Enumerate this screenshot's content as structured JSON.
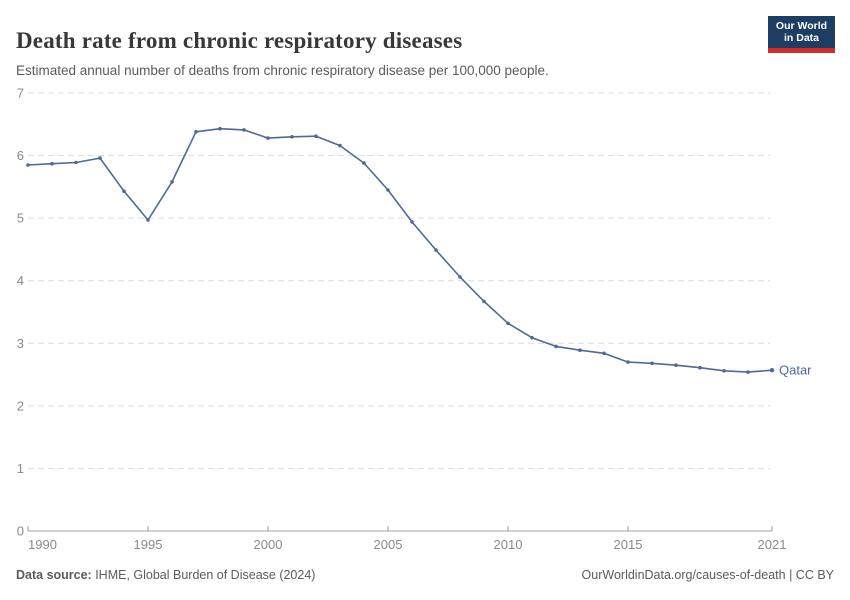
{
  "header": {
    "title": "Death rate from chronic respiratory diseases",
    "subtitle": "Estimated annual number of deaths from chronic respiratory disease per 100,000 people.",
    "logo": {
      "line1": "Our World",
      "line2": "in Data",
      "bg_color": "#1d3d63",
      "accent_color": "#d42b2b"
    }
  },
  "chart_data": {
    "type": "line",
    "title": "Death rate from chronic respiratory diseases",
    "xlabel": "",
    "ylabel": "",
    "ylim": [
      0,
      7
    ],
    "xlim": [
      1990,
      2021
    ],
    "yticks": [
      0,
      1,
      2,
      3,
      4,
      5,
      6,
      7
    ],
    "xticks": [
      1990,
      1995,
      2000,
      2005,
      2010,
      2015,
      2021
    ],
    "grid": "horizontal-dashed",
    "legend_position": "end-of-line-label",
    "line_color": "#4c6a9c",
    "axis_color": "#a3a3a3",
    "grid_color": "#dcdcdc",
    "tick_label_color": "#8a8a8a",
    "series": [
      {
        "name": "Qatar",
        "color": "#4c6a9c",
        "x": [
          1990,
          1991,
          1992,
          1993,
          1994,
          1995,
          1996,
          1997,
          1998,
          1999,
          2000,
          2001,
          2002,
          2003,
          2004,
          2005,
          2006,
          2007,
          2008,
          2009,
          2010,
          2011,
          2012,
          2013,
          2014,
          2015,
          2016,
          2017,
          2018,
          2019,
          2020,
          2021
        ],
        "values": [
          5.85,
          5.87,
          5.89,
          5.96,
          5.43,
          4.97,
          5.58,
          6.38,
          6.43,
          6.41,
          6.28,
          6.3,
          6.31,
          6.16,
          5.88,
          5.45,
          4.94,
          4.49,
          4.06,
          3.67,
          3.32,
          3.09,
          2.95,
          2.89,
          2.84,
          2.7,
          2.68,
          2.65,
          2.61,
          2.56,
          2.54,
          2.57
        ]
      }
    ]
  },
  "footer": {
    "source_label": "Data source:",
    "source_text": " IHME, Global Burden of Disease (2024)",
    "credit_link": "OurWorldinData.org/causes-of-death",
    "credit_license": " | CC BY"
  }
}
